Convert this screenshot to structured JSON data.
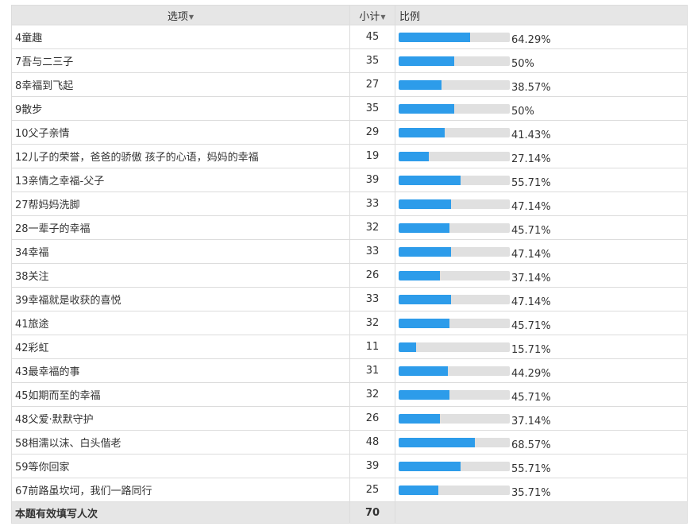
{
  "header": {
    "option_label": "选项",
    "count_label": "小计",
    "ratio_label": "比例"
  },
  "sort_icon": "▼",
  "rows": [
    {
      "option": "4童趣",
      "count": "45",
      "percent": "64.29%",
      "fraction": 0.6429
    },
    {
      "option": "7吾与二三子",
      "count": "35",
      "percent": "50%",
      "fraction": 0.5
    },
    {
      "option": "8幸福到飞起",
      "count": "27",
      "percent": "38.57%",
      "fraction": 0.3857
    },
    {
      "option": "9散步",
      "count": "35",
      "percent": "50%",
      "fraction": 0.5
    },
    {
      "option": "10父子亲情",
      "count": "29",
      "percent": "41.43%",
      "fraction": 0.4143
    },
    {
      "option": "12儿子的荣誉，爸爸的骄傲 孩子的心语，妈妈的幸福",
      "count": "19",
      "percent": "27.14%",
      "fraction": 0.2714
    },
    {
      "option": "13亲情之幸福-父子",
      "count": "39",
      "percent": "55.71%",
      "fraction": 0.5571
    },
    {
      "option": "27帮妈妈洗脚",
      "count": "33",
      "percent": "47.14%",
      "fraction": 0.4714
    },
    {
      "option": "28一辈子的幸福",
      "count": "32",
      "percent": "45.71%",
      "fraction": 0.4571
    },
    {
      "option": "34幸福",
      "count": "33",
      "percent": "47.14%",
      "fraction": 0.4714
    },
    {
      "option": "38关注",
      "count": "26",
      "percent": "37.14%",
      "fraction": 0.3714
    },
    {
      "option": "39幸福就是收获的喜悦",
      "count": "33",
      "percent": "47.14%",
      "fraction": 0.4714
    },
    {
      "option": "41旅途",
      "count": "32",
      "percent": "45.71%",
      "fraction": 0.4571
    },
    {
      "option": "42彩虹",
      "count": "11",
      "percent": "15.71%",
      "fraction": 0.1571
    },
    {
      "option": "43最幸福的事",
      "count": "31",
      "percent": "44.29%",
      "fraction": 0.4429
    },
    {
      "option": "45如期而至的幸福",
      "count": "32",
      "percent": "45.71%",
      "fraction": 0.4571
    },
    {
      "option": "48父爱·默默守护",
      "count": "26",
      "percent": "37.14%",
      "fraction": 0.3714
    },
    {
      "option": "58相濡以沫、白头偕老",
      "count": "48",
      "percent": "68.57%",
      "fraction": 0.6857
    },
    {
      "option": "59等你回家",
      "count": "39",
      "percent": "55.71%",
      "fraction": 0.5571
    },
    {
      "option": "67前路虽坎坷，我们一路同行",
      "count": "25",
      "percent": "35.71%",
      "fraction": 0.3571
    }
  ],
  "footer": {
    "label": "本题有效填写人次",
    "total": "70"
  },
  "colors": {
    "bar_fill": "#2d9cea",
    "bar_track": "#e0e0e0",
    "header_bg": "#e6e6e6"
  }
}
